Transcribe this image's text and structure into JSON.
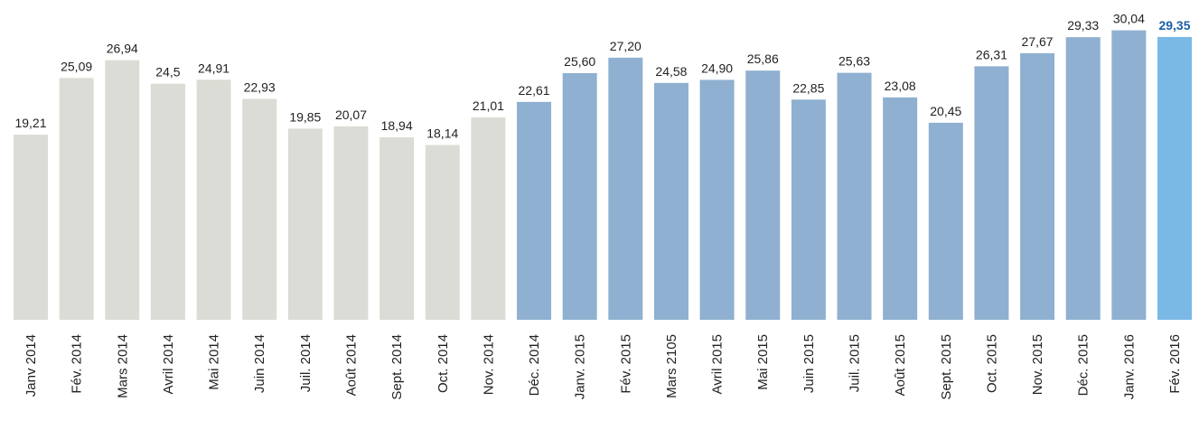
{
  "chart_data": {
    "type": "bar",
    "categories": [
      "Janv 2014",
      "Fév. 2014",
      "Mars 2014",
      "Avril 2014",
      "Mai 2014",
      "Juin 2014",
      "Juil. 2014",
      "Août 2014",
      "Sept. 2014",
      "Oct. 2014",
      "Nov. 2014",
      "Déc. 2014",
      "Janv. 2015",
      "Fév. 2015",
      "Mars 2105",
      "Avril 2015",
      "Mai 2015",
      "Juin 2015",
      "Juil. 2015",
      "Août 2015",
      "Sept. 2015",
      "Oct. 2015",
      "Nov. 2015",
      "Déc. 2015",
      "Janv. 2016",
      "Fév. 2016"
    ],
    "values": [
      19.21,
      25.09,
      26.94,
      24.5,
      24.91,
      22.93,
      19.85,
      20.07,
      18.94,
      18.14,
      21.01,
      22.61,
      25.6,
      27.2,
      24.58,
      24.9,
      25.86,
      22.85,
      25.63,
      23.08,
      20.45,
      26.31,
      27.67,
      29.33,
      30.04,
      29.35
    ],
    "value_labels": [
      "19,21",
      "25,09",
      "26,94",
      "24,5",
      "24,91",
      "22,93",
      "19,85",
      "20,07",
      "18,94",
      "18,14",
      "21,01",
      "22,61",
      "25,60",
      "27,20",
      "24,58",
      "24,90",
      "25,86",
      "22,85",
      "25,63",
      "23,08",
      "20,45",
      "26,31",
      "27,67",
      "29,33",
      "30,04",
      "29,35"
    ],
    "colors": [
      "#dcdcd6",
      "#dcdcd6",
      "#dcdcd6",
      "#dcdcd6",
      "#dcdcd6",
      "#dcdcd6",
      "#dcdcd6",
      "#dcdcd6",
      "#dcdcd6",
      "#dcdcd6",
      "#dcdcd6",
      "#8fb0d0",
      "#8fb0d0",
      "#8fb0d0",
      "#8fb0d0",
      "#8fb0d0",
      "#8fb0d0",
      "#8fb0d0",
      "#8fb0d0",
      "#8fb0d0",
      "#8fb0d0",
      "#8fb0d0",
      "#8fb0d0",
      "#8fb0d0",
      "#8fb0d0",
      "#7ab8e6"
    ],
    "ylim": [
      0,
      33
    ]
  }
}
